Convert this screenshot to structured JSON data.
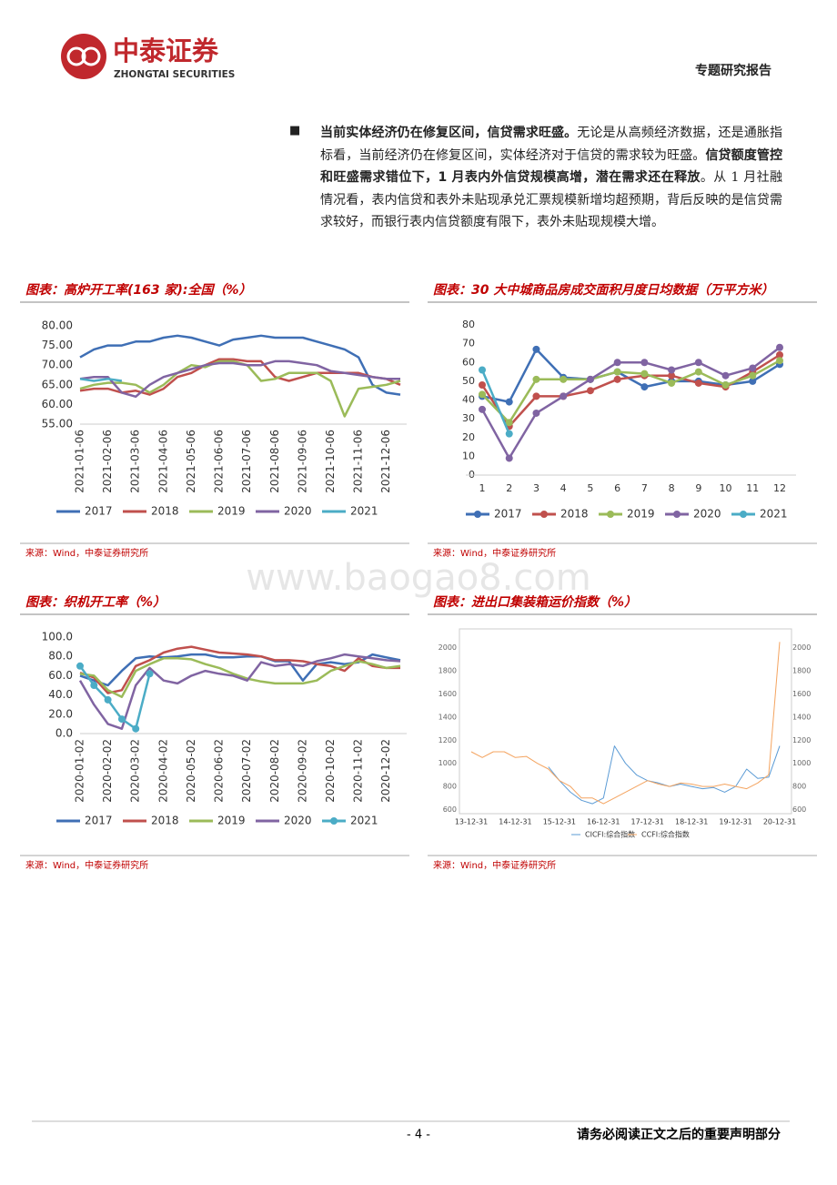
{
  "header": {
    "brand_cn": "中泰证券",
    "brand_en": "ZHONGTAI SECURITIES",
    "report_type": "专题研究报告"
  },
  "body": {
    "bullet": "■",
    "segments": [
      {
        "text": "当前实体经济仍在修复区间，信贷需求旺盛。",
        "bold": true
      },
      {
        "text": "无论是从高频经济数据，还是通胀指标看，当前经济仍在修复区间，实体经济对于信贷的需求较为旺盛。",
        "bold": false
      },
      {
        "text": "信贷额度管控和旺盛需求错位下，1 月表内外信贷规模高增，潜在需求还在释放",
        "bold": true
      },
      {
        "text": "。从 1 月社融情况看，表内信贷和表外未贴现承兑汇票规模新增均超预期，背后反映的是信贷需求较好，而银行表内信贷额度有限下，表外未贴现规模大增。",
        "bold": false
      }
    ]
  },
  "watermark": "www.baogao8.com",
  "charts": [
    {
      "type": "line",
      "title": "图表：高炉开工率(163 家):全国（%）",
      "source": "来源：Wind，中泰证券研究所",
      "categories": [
        "2021-01-06",
        null,
        "2021-02-06",
        null,
        "2021-03-06",
        null,
        "2021-04-06",
        null,
        "2021-05-06",
        null,
        "2021-06-06",
        null,
        "2021-07-06",
        null,
        "2021-08-06",
        null,
        "2021-09-06",
        null,
        "2021-10-06",
        null,
        "2021-11-06",
        null,
        "2021-12-06",
        null
      ],
      "ylim": [
        55,
        80
      ],
      "yticks": [
        {
          "value": 55,
          "label": "55.00"
        },
        {
          "value": 60,
          "label": "60.00"
        },
        {
          "value": 65,
          "label": "65.00"
        },
        {
          "value": 70,
          "label": "70.00"
        },
        {
          "value": 75,
          "label": "75.00"
        },
        {
          "value": 80,
          "label": "80.00"
        }
      ],
      "series": [
        {
          "name": "2017",
          "color": "#3f6fb5",
          "values": [
            72,
            74,
            75,
            75,
            76,
            76,
            77,
            77.5,
            77,
            76,
            75,
            76.5,
            77,
            77.5,
            77,
            77,
            77,
            76,
            75,
            74,
            72,
            65,
            63,
            62.5
          ]
        },
        {
          "name": "2018",
          "color": "#c0504d",
          "values": [
            63.5,
            64,
            64,
            63,
            63.5,
            62.5,
            64,
            67,
            68,
            70,
            71.5,
            71.5,
            71,
            71,
            67,
            66,
            67,
            68,
            68,
            68,
            68,
            67,
            66.5,
            65
          ]
        },
        {
          "name": "2019",
          "color": "#9bbb59",
          "values": [
            64,
            65,
            65.5,
            65.5,
            65,
            63,
            65,
            68,
            70,
            69.5,
            71,
            71,
            70,
            66,
            66.5,
            68,
            68,
            68,
            66,
            57,
            64,
            64.5,
            65,
            66
          ]
        },
        {
          "name": "2020",
          "color": "#8064a2",
          "values": [
            66.5,
            67,
            67,
            63,
            62,
            65,
            67,
            68,
            69,
            70,
            70.5,
            70.5,
            70,
            70,
            71,
            71,
            70.5,
            70,
            68.5,
            68,
            67.5,
            67,
            66.5,
            66.5
          ]
        },
        {
          "name": "2021",
          "color": "#4bacc6",
          "values": [
            66.5,
            66,
            66.5,
            66,
            null,
            null,
            null,
            null,
            null,
            null,
            null,
            null,
            null,
            null,
            null,
            null,
            null,
            null,
            null,
            null,
            null,
            null,
            null,
            null
          ]
        }
      ]
    },
    {
      "type": "line",
      "title": "图表：30 大中城商品房成交面积月度日均数据（万平方米）",
      "source": "来源：Wind，中泰证券研究所",
      "categories": [
        1,
        2,
        3,
        4,
        5,
        6,
        7,
        8,
        9,
        10,
        11,
        12
      ],
      "ylim": [
        0,
        80
      ],
      "yticks": [
        0,
        10,
        20,
        30,
        40,
        50,
        60,
        70,
        80
      ],
      "series": [
        {
          "name": "2017",
          "color": "#3f6fb5",
          "marker": true,
          "values": [
            42,
            39,
            67,
            52,
            51,
            55,
            47,
            50,
            50,
            48,
            50,
            59
          ]
        },
        {
          "name": "2018",
          "color": "#c0504d",
          "marker": true,
          "values": [
            48,
            26,
            42,
            42,
            45,
            51,
            53,
            53,
            49,
            47,
            55,
            64
          ]
        },
        {
          "name": "2019",
          "color": "#9bbb59",
          "marker": true,
          "values": [
            43,
            28,
            51,
            51,
            51,
            55,
            54,
            49,
            55,
            48,
            53,
            61
          ]
        },
        {
          "name": "2020",
          "color": "#8064a2",
          "marker": true,
          "values": [
            35,
            9,
            33,
            42,
            51,
            60,
            60,
            56,
            60,
            53,
            57,
            68
          ]
        },
        {
          "name": "2021",
          "color": "#4bacc6",
          "marker": true,
          "values": [
            56,
            22,
            null,
            null,
            null,
            null,
            null,
            null,
            null,
            null,
            null,
            null
          ]
        }
      ]
    },
    {
      "type": "line",
      "title": "图表：织机开工率（%）",
      "source": "来源：Wind，中泰证券研究所",
      "categories": [
        "2020-01-02",
        null,
        "2020-02-02",
        null,
        "2020-03-02",
        null,
        "2020-04-02",
        null,
        "2020-05-02",
        null,
        "2020-06-02",
        null,
        "2020-07-02",
        null,
        "2020-08-02",
        null,
        "2020-09-02",
        null,
        "2020-10-02",
        null,
        "2020-11-02",
        null,
        "2020-12-02",
        null
      ],
      "ylim": [
        0,
        100
      ],
      "yticks": [
        {
          "value": 0,
          "label": "0.0"
        },
        {
          "value": 20,
          "label": "20.0"
        },
        {
          "value": 40,
          "label": "40.0"
        },
        {
          "value": 60,
          "label": "60.0"
        },
        {
          "value": 80,
          "label": "80.0"
        },
        {
          "value": 100,
          "label": "100.0"
        }
      ],
      "series": [
        {
          "name": "2017",
          "color": "#3f6fb5",
          "values": [
            60,
            55,
            50,
            65,
            78,
            80,
            79,
            80,
            82,
            82,
            79,
            79,
            80,
            80,
            75,
            75,
            55,
            72,
            74,
            72,
            74,
            82,
            79,
            76
          ]
        },
        {
          "name": "2018",
          "color": "#c0504d",
          "values": [
            63,
            58,
            42,
            45,
            70,
            76,
            84,
            88,
            90,
            87,
            84,
            83,
            82,
            80,
            76,
            76,
            75,
            72,
            70,
            65,
            78,
            70,
            68,
            68
          ]
        },
        {
          "name": "2019",
          "color": "#9bbb59",
          "values": [
            62,
            60,
            45,
            38,
            65,
            72,
            78,
            78,
            77,
            72,
            68,
            62,
            57,
            54,
            52,
            52,
            52,
            55,
            65,
            70,
            75,
            72,
            68,
            70
          ]
        },
        {
          "name": "2020",
          "color": "#8064a2",
          "values": [
            55,
            30,
            10,
            5,
            50,
            68,
            55,
            52,
            60,
            65,
            62,
            60,
            55,
            74,
            70,
            72,
            70,
            75,
            78,
            82,
            80,
            78,
            76,
            75
          ]
        },
        {
          "name": "2021",
          "color": "#4bacc6",
          "marker": true,
          "values": [
            70,
            50,
            35,
            15,
            5,
            62,
            null,
            null,
            null,
            null,
            null,
            null,
            null,
            null,
            null,
            null,
            null,
            null,
            null,
            null,
            null,
            null,
            null,
            null
          ]
        }
      ]
    },
    {
      "type": "line",
      "title": "图表：进出口集装箱运价指数（%）",
      "source": "来源：Wind，中泰证券研究所",
      "categories": [
        "13-12-31",
        null,
        null,
        null,
        "14-12-31",
        null,
        null,
        null,
        "15-12-31",
        null,
        null,
        null,
        "16-12-31",
        null,
        null,
        null,
        "17-12-31",
        null,
        null,
        null,
        "18-12-31",
        null,
        null,
        null,
        "19-12-31",
        null,
        null,
        null,
        "20-12-31"
      ],
      "ylim": [
        580,
        2100
      ],
      "yticks": [
        600,
        800,
        1000,
        1200,
        1400,
        1600,
        1800,
        2000
      ],
      "y2lim": [
        580,
        2100
      ],
      "y2ticks": [
        600,
        800,
        1000,
        1200,
        1400,
        1600,
        1800,
        2000
      ],
      "series": [
        {
          "name": "CICFI:综合指数",
          "color": "#5b9bd5",
          "axis": "y2",
          "values": [
            null,
            null,
            null,
            null,
            null,
            null,
            null,
            970,
            850,
            750,
            680,
            650,
            700,
            1150,
            1000,
            900,
            850,
            830,
            800,
            820,
            800,
            780,
            790,
            750,
            800,
            950,
            870,
            880,
            1150
          ]
        },
        {
          "name": "CCFI:综合指数",
          "color": "#f4a460",
          "values": [
            1100,
            1050,
            1100,
            1100,
            1050,
            1060,
            1000,
            950,
            850,
            800,
            700,
            700,
            650,
            700,
            750,
            800,
            850,
            820,
            800,
            830,
            820,
            800,
            800,
            820,
            800,
            780,
            830,
            900,
            2050
          ]
        }
      ]
    }
  ],
  "footer": {
    "page": "- 4 -",
    "disclaimer": "请务必阅读正文之后的重要声明部分"
  }
}
